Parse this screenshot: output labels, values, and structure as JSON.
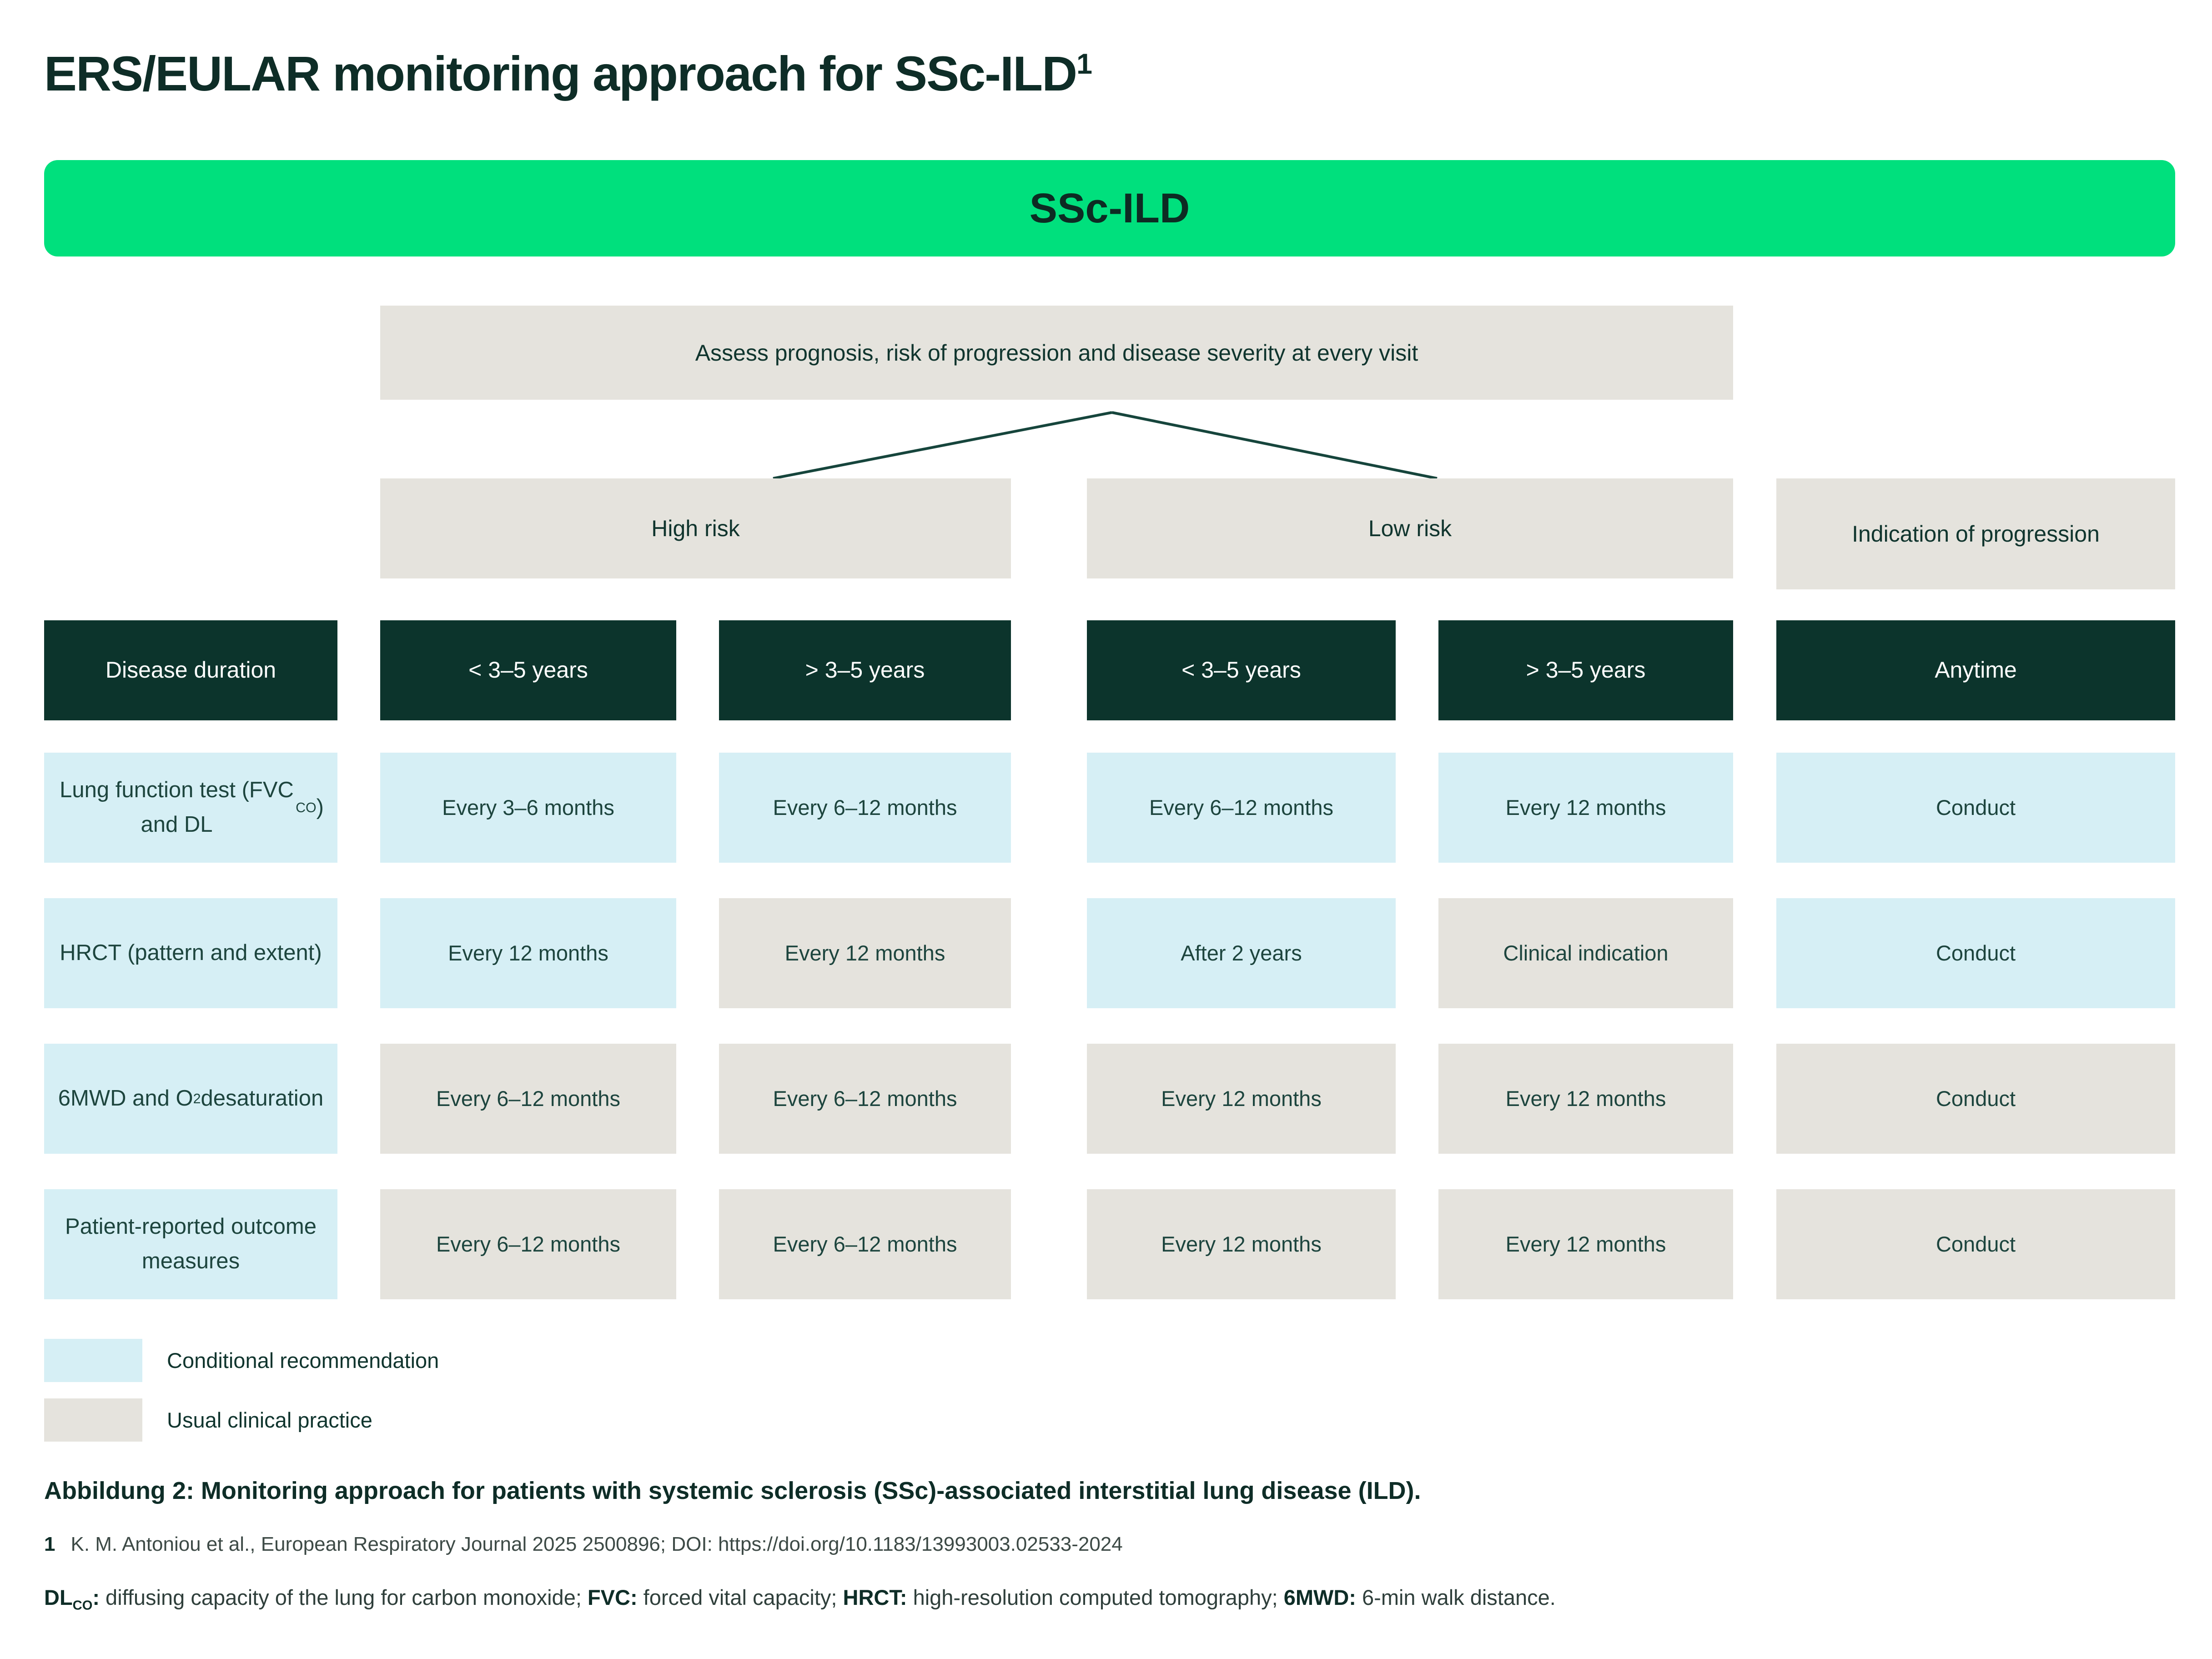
{
  "colors": {
    "accent_green": "#00e07d",
    "dark_cell": "#0c342c",
    "conditional_blue": "#d6eff5",
    "usual_gray": "#e5e3dd",
    "ink": "#0e2d27"
  },
  "title": {
    "text": "ERS/EULAR monitoring approach for SSc-ILD",
    "superscript": "1"
  },
  "banner": {
    "label": "SSc-ILD"
  },
  "flow": {
    "assess": "Assess prognosis, risk of progression and disease severity at every visit",
    "groups": {
      "high_risk": "High risk",
      "low_risk": "Low risk",
      "indication": "Indication of progression"
    }
  },
  "table": {
    "corner_header": "Disease duration",
    "column_headers": [
      "< 3–5 years",
      "> 3–5 years",
      "< 3–5 years",
      "> 3–5 years",
      "Anytime"
    ],
    "rows": [
      {
        "label_parts": [
          {
            "t": "Lung function test (FVC and DL"
          },
          {
            "t": "CO",
            "sub": true
          },
          {
            "t": ")"
          }
        ],
        "cells": [
          {
            "text": "Every 3–6 months",
            "type": "conditional"
          },
          {
            "text": "Every 6–12 months",
            "type": "conditional"
          },
          {
            "text": "Every 6–12 months",
            "type": "conditional"
          },
          {
            "text": "Every 12 months",
            "type": "conditional"
          },
          {
            "text": "Conduct",
            "type": "conditional"
          }
        ]
      },
      {
        "label_parts": [
          {
            "t": "HRCT (pattern and extent)"
          }
        ],
        "cells": [
          {
            "text": "Every 12 months",
            "type": "conditional"
          },
          {
            "text": "Every 12 months",
            "type": "usual"
          },
          {
            "text": "After 2 years",
            "type": "conditional"
          },
          {
            "text": "Clinical indication",
            "type": "usual"
          },
          {
            "text": "Conduct",
            "type": "conditional"
          }
        ]
      },
      {
        "label_parts": [
          {
            "t": "6MWD and O"
          },
          {
            "t": "2",
            "sub": true
          },
          {
            "t": " desaturation"
          }
        ],
        "cells": [
          {
            "text": "Every 6–12 months",
            "type": "usual"
          },
          {
            "text": "Every 6–12 months",
            "type": "usual"
          },
          {
            "text": "Every 12 months",
            "type": "usual"
          },
          {
            "text": "Every 12 months",
            "type": "usual"
          },
          {
            "text": "Conduct",
            "type": "usual"
          }
        ]
      },
      {
        "label_parts": [
          {
            "t": "Patient-reported outcome measures"
          }
        ],
        "cells": [
          {
            "text": "Every 6–12 months",
            "type": "usual"
          },
          {
            "text": "Every 6–12 months",
            "type": "usual"
          },
          {
            "text": "Every 12 months",
            "type": "usual"
          },
          {
            "text": "Every 12 months",
            "type": "usual"
          },
          {
            "text": "Conduct",
            "type": "usual"
          }
        ]
      }
    ]
  },
  "legend": {
    "items": [
      {
        "label": "Conditional recommendation",
        "type": "conditional"
      },
      {
        "label": "Usual clinical practice",
        "type": "usual"
      }
    ]
  },
  "caption": "Abbildung 2: Monitoring approach for patients with systemic sclerosis (SSc)-associated interstitial lung disease (ILD).",
  "footnote": {
    "marker": "1",
    "text": "K. M. Antoniou et al., European Respiratory Journal 2025 2500896; DOI: https://doi.org/10.1183/13993003.02533-2024"
  },
  "abbreviations": {
    "segments": [
      {
        "t": "DL",
        "b": true
      },
      {
        "t": "CO",
        "b": true,
        "sub": true
      },
      {
        "t": ":",
        "b": true
      },
      {
        "t": " diffusing capacity of the lung for carbon monoxide; "
      },
      {
        "t": "FVC:",
        "b": true
      },
      {
        "t": " forced vital capacity; "
      },
      {
        "t": "HRCT:",
        "b": true
      },
      {
        "t": " high-resolution computed tomography; "
      },
      {
        "t": "6MWD:",
        "b": true
      },
      {
        "t": " 6-min walk distance."
      }
    ]
  }
}
